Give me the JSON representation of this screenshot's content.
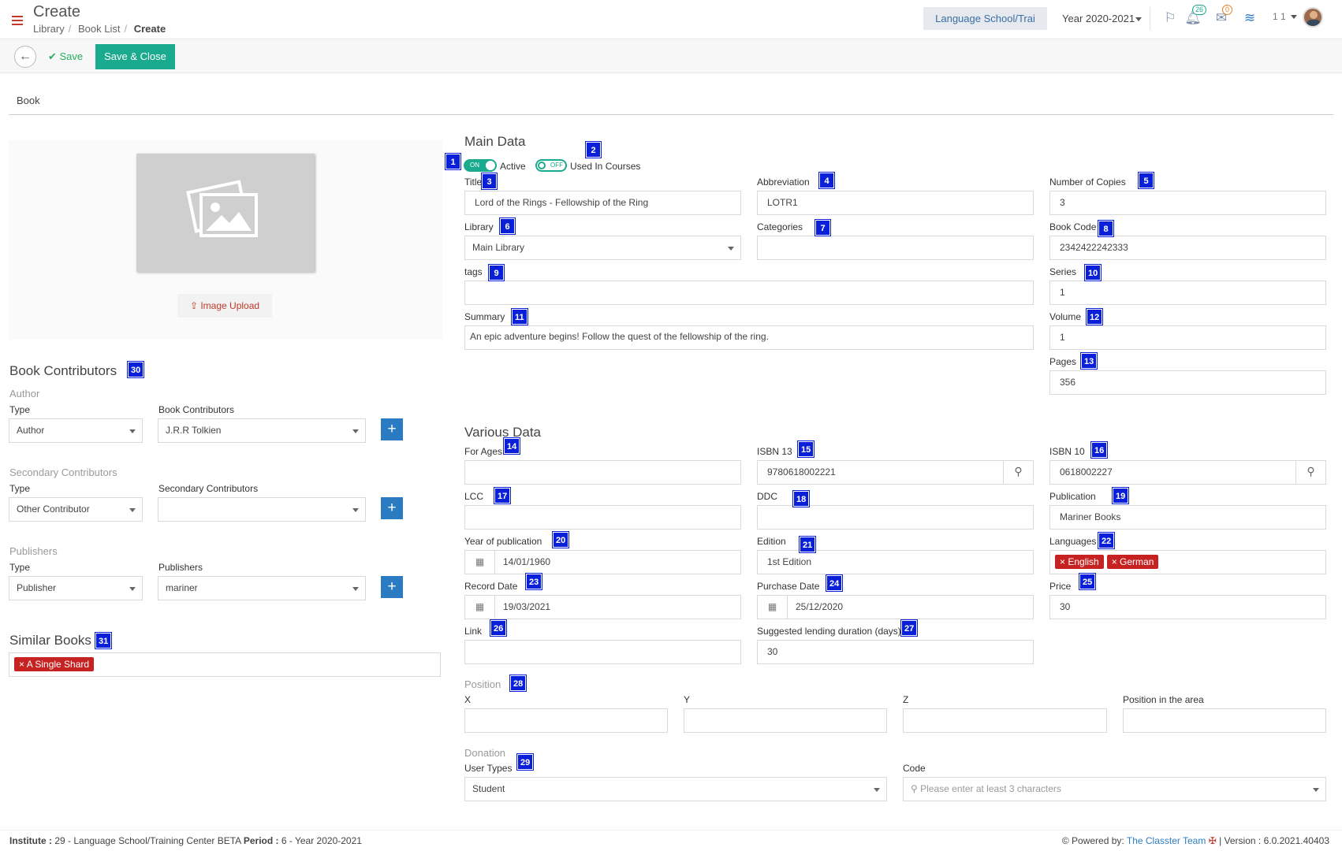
{
  "header": {
    "title": "Create",
    "breadcrumb": [
      "Library",
      "Book List",
      "Create"
    ],
    "school": "Language School/Trai",
    "year": "Year 2020-2021",
    "notifications_count": "26",
    "messages_count": "0",
    "user_number": "1 1"
  },
  "toolbar": {
    "save_label": "Save",
    "save_close_label": "Save & Close"
  },
  "tab": "Book",
  "image": {
    "upload_label": "Image Upload"
  },
  "contributors": {
    "title": "Book Contributors",
    "type_label": "Type",
    "author": {
      "group": "Author",
      "type": "Author",
      "col": "Book Contributors",
      "value": "J.R.R Tolkien"
    },
    "secondary": {
      "group": "Secondary Contributors",
      "type": "Other Contributor",
      "col": "Secondary Contributors",
      "value": ""
    },
    "publishers": {
      "group": "Publishers",
      "type": "Publisher",
      "col": "Publishers",
      "value": "mariner"
    }
  },
  "similar": {
    "title": "Similar Books",
    "tags": [
      "A Single Shard"
    ]
  },
  "main": {
    "title": "Main Data",
    "active_label": "Active",
    "used_label": "Used In Courses",
    "on": "ON",
    "off": "OFF",
    "title_label": "Title",
    "title_value": "Lord of the Rings - Fellowship of the Ring",
    "abbr_label": "Abbreviation",
    "abbr_value": "LOTR1",
    "copies_label": "Number of Copies",
    "copies_value": "3",
    "library_label": "Library",
    "library_value": "Main Library",
    "categories_label": "Categories",
    "bookcode_label": "Book Code",
    "bookcode_value": "2342422242333",
    "tags_label": "tags",
    "series_label": "Series",
    "series_value": "1",
    "summary_label": "Summary",
    "summary_value": "An epic adventure begins! Follow the quest of the fellowship of the ring.",
    "volume_label": "Volume",
    "volume_value": "1",
    "pages_label": "Pages",
    "pages_value": "356"
  },
  "various": {
    "title": "Various Data",
    "ages_label": "For Ages",
    "isbn13_label": "ISBN 13",
    "isbn13_value": "9780618002221",
    "isbn10_label": "ISBN 10",
    "isbn10_value": "0618002227",
    "lcc_label": "LCC",
    "ddc_label": "DDC",
    "publication_label": "Publication",
    "publication_value": "Mariner Books",
    "yop_label": "Year of publication",
    "yop_value": "14/01/1960",
    "edition_label": "Edition",
    "edition_value": "1st Edition",
    "languages_label": "Languages",
    "languages": [
      "English",
      "German"
    ],
    "record_label": "Record Date",
    "record_value": "19/03/2021",
    "purchase_label": "Purchase Date",
    "purchase_value": "25/12/2020",
    "price_label": "Price",
    "price_value": "30",
    "link_label": "Link",
    "lending_label": "Suggested lending duration (days)",
    "lending_value": "30"
  },
  "position": {
    "group": "Position",
    "x": "X",
    "y": "Y",
    "z": "Z",
    "area": "Position in the area"
  },
  "donation": {
    "group": "Donation",
    "usertypes_label": "User Types",
    "usertypes_value": "Student",
    "code_label": "Code",
    "code_placeholder": "Please enter at least 3 characters"
  },
  "markers": [
    "1",
    "2",
    "3",
    "4",
    "5",
    "6",
    "7",
    "8",
    "9",
    "10",
    "11",
    "12",
    "13",
    "14",
    "15",
    "16",
    "17",
    "18",
    "19",
    "20",
    "21",
    "22",
    "23",
    "24",
    "25",
    "26",
    "27",
    "28",
    "29",
    "30",
    "31"
  ],
  "footer": {
    "institute_label": "Institute :",
    "institute_value": "29 - Language School/Training Center BETA",
    "period_label": "Period :",
    "period_value": "6 - Year 2020-2021",
    "powered_label": "Powered by:",
    "powered_value": "The Classter Team",
    "version": "| Version : 6.0.2021.40403"
  },
  "colors": {
    "accent": "#1aaa8d",
    "primary": "#2b7bc3",
    "marker": "#0a20d8",
    "tag": "#c72222"
  }
}
